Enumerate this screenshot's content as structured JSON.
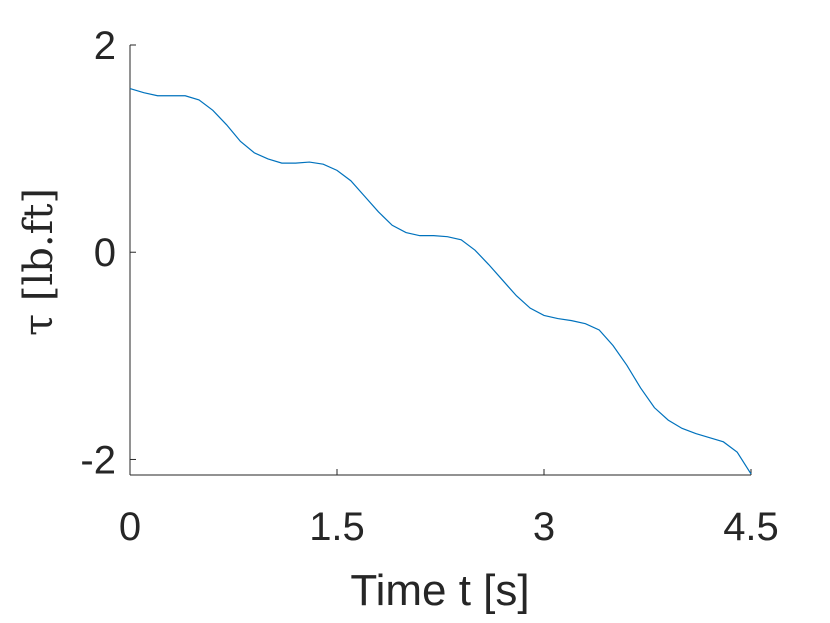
{
  "chart_data": {
    "type": "line",
    "xlabel": "Time t [s]",
    "ylabel": "τ [lb.ft]",
    "xlim": [
      0,
      4.5
    ],
    "ylim": [
      -2.15,
      2
    ],
    "xticks": [
      0,
      1.5,
      3,
      4.5
    ],
    "yticks": [
      -2,
      0,
      2
    ],
    "x": [
      0,
      0.1,
      0.2,
      0.3,
      0.4,
      0.5,
      0.6,
      0.7,
      0.8,
      0.9,
      1.0,
      1.1,
      1.2,
      1.3,
      1.4,
      1.5,
      1.6,
      1.7,
      1.8,
      1.9,
      2.0,
      2.1,
      2.2,
      2.3,
      2.4,
      2.5,
      2.6,
      2.7,
      2.8,
      2.9,
      3.0,
      3.1,
      3.2,
      3.3,
      3.4,
      3.5,
      3.6,
      3.7,
      3.8,
      3.9,
      4.0,
      4.1,
      4.2,
      4.3,
      4.4,
      4.5
    ],
    "series": [
      {
        "color": "#0072bd",
        "values": [
          1.58,
          1.54,
          1.51,
          1.51,
          1.51,
          1.47,
          1.37,
          1.23,
          1.07,
          0.96,
          0.9,
          0.86,
          0.86,
          0.87,
          0.85,
          0.79,
          0.69,
          0.54,
          0.39,
          0.26,
          0.19,
          0.16,
          0.16,
          0.15,
          0.12,
          0.02,
          -0.12,
          -0.27,
          -0.42,
          -0.54,
          -0.61,
          -0.64,
          -0.66,
          -0.69,
          -0.75,
          -0.9,
          -1.09,
          -1.31,
          -1.5,
          -1.62,
          -1.7,
          -1.75,
          -1.79,
          -1.83,
          -1.93,
          -2.14
        ]
      }
    ]
  }
}
